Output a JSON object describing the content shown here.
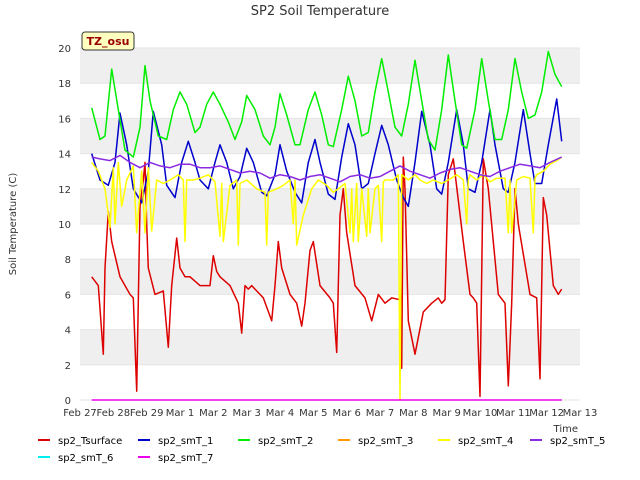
{
  "chart_data": {
    "type": "line",
    "title": "SP2 Soil Temperature",
    "xlabel": "Time",
    "ylabel": "Soil Temperature (C)",
    "site_tag": "TZ_osu",
    "ylim": [
      0,
      20
    ],
    "yticks": [
      0,
      2,
      4,
      6,
      8,
      10,
      12,
      14,
      16,
      18,
      20
    ],
    "xlim": [
      0,
      15
    ],
    "xticks": [
      {
        "label": "Feb 27",
        "pos": 0
      },
      {
        "label": "Feb 28",
        "pos": 1
      },
      {
        "label": "Feb 29",
        "pos": 2
      },
      {
        "label": "Mar 1",
        "pos": 3
      },
      {
        "label": "Mar 2",
        "pos": 4
      },
      {
        "label": "Mar 3",
        "pos": 5
      },
      {
        "label": "Mar 4",
        "pos": 6
      },
      {
        "label": "Mar 5",
        "pos": 7
      },
      {
        "label": "Mar 6",
        "pos": 8
      },
      {
        "label": "Mar 7",
        "pos": 9
      },
      {
        "label": "Mar 8",
        "pos": 10
      },
      {
        "label": "Mar 9",
        "pos": 11
      },
      {
        "label": "Mar 10",
        "pos": 12
      },
      {
        "label": "Mar 11",
        "pos": 13
      },
      {
        "label": "Mar 12",
        "pos": 14
      },
      {
        "label": "Mar 13",
        "pos": 15
      }
    ],
    "grid": "horizontal bands",
    "legend_position": "bottom",
    "series": [
      {
        "name": "sp2_Tsurface",
        "color": "#dd0000",
        "x": [
          0.35,
          0.55,
          0.7,
          0.75,
          0.85,
          0.95,
          1.2,
          1.5,
          1.6,
          1.7,
          1.8,
          1.9,
          1.95,
          2.0,
          2.05,
          2.25,
          2.5,
          2.65,
          2.75,
          2.9,
          3.0,
          3.15,
          3.3,
          3.6,
          3.9,
          4.0,
          4.1,
          4.2,
          4.5,
          4.75,
          4.85,
          4.95,
          5.05,
          5.15,
          5.5,
          5.75,
          5.85,
          5.95,
          6.05,
          6.3,
          6.5,
          6.65,
          6.75,
          6.9,
          7.0,
          7.2,
          7.5,
          7.6,
          7.7,
          7.8,
          7.9,
          8.0,
          8.25,
          8.55,
          8.75,
          8.95,
          9.15,
          9.35,
          9.6,
          9.65,
          9.7,
          9.75,
          9.85,
          10.05,
          10.3,
          10.55,
          10.75,
          10.85,
          10.95,
          11.05,
          11.2,
          11.5,
          11.7,
          11.8,
          11.9,
          12.0,
          12.1,
          12.25,
          12.55,
          12.75,
          12.85,
          12.95,
          13.05,
          13.15,
          13.5,
          13.7,
          13.8,
          13.9,
          14.0,
          14.2,
          14.35,
          14.45
        ],
        "y": [
          7.0,
          6.5,
          2.6,
          7.5,
          10.7,
          9.0,
          7.0,
          6.0,
          5.8,
          0.5,
          11.0,
          12.5,
          13.5,
          10.0,
          7.5,
          6.0,
          6.2,
          3.0,
          6.5,
          9.2,
          7.5,
          7.0,
          7.0,
          6.5,
          6.5,
          8.2,
          7.3,
          7.0,
          6.5,
          5.5,
          3.8,
          6.5,
          6.3,
          6.5,
          5.8,
          4.5,
          6.5,
          9.0,
          7.5,
          6.0,
          5.5,
          4.2,
          5.5,
          8.5,
          9.0,
          6.5,
          5.8,
          5.5,
          2.7,
          10.5,
          12.0,
          9.5,
          6.5,
          5.8,
          4.5,
          6.0,
          5.5,
          5.8,
          5.7,
          1.8,
          13.8,
          12.0,
          4.5,
          2.6,
          5.0,
          5.5,
          5.8,
          5.5,
          5.7,
          12.8,
          13.7,
          9.0,
          6.0,
          5.8,
          5.5,
          0.2,
          13.7,
          12.0,
          6.0,
          5.5,
          0.8,
          5.5,
          12.0,
          10.0,
          6.0,
          5.8,
          1.2,
          11.5,
          10.5,
          6.5,
          6.0,
          6.3
        ]
      },
      {
        "name": "sp2_smT_1",
        "color": "#0000cc",
        "x": [
          0.35,
          0.6,
          0.85,
          1.05,
          1.2,
          1.4,
          1.6,
          1.85,
          2.05,
          2.2,
          2.45,
          2.6,
          2.85,
          3.05,
          3.25,
          3.45,
          3.6,
          3.85,
          4.05,
          4.2,
          4.4,
          4.6,
          4.8,
          5.0,
          5.2,
          5.45,
          5.6,
          5.85,
          6.0,
          6.2,
          6.45,
          6.65,
          6.85,
          7.05,
          7.2,
          7.45,
          7.65,
          7.85,
          8.05,
          8.25,
          8.45,
          8.65,
          8.85,
          9.05,
          9.25,
          9.5,
          9.7,
          9.85,
          10.05,
          10.25,
          10.5,
          10.7,
          10.85,
          11.05,
          11.3,
          11.5,
          11.65,
          11.85,
          12.05,
          12.3,
          12.45,
          12.7,
          12.85,
          13.05,
          13.3,
          13.5,
          13.65,
          13.85,
          14.05,
          14.3,
          14.45
        ],
        "y": [
          14.0,
          12.5,
          12.2,
          13.5,
          16.3,
          14.5,
          12.0,
          11.2,
          13.0,
          16.4,
          14.5,
          12.2,
          11.5,
          13.5,
          14.7,
          13.5,
          12.5,
          12.0,
          13.5,
          14.5,
          13.5,
          12.0,
          12.7,
          14.3,
          13.5,
          11.8,
          11.6,
          12.8,
          14.5,
          13.0,
          11.8,
          11.2,
          13.5,
          14.8,
          13.5,
          11.7,
          11.4,
          13.8,
          15.7,
          14.5,
          12.0,
          12.3,
          14.0,
          15.6,
          14.5,
          12.5,
          11.5,
          11.0,
          13.5,
          16.4,
          14.5,
          12.0,
          11.7,
          13.5,
          16.5,
          14.5,
          12.0,
          11.8,
          13.5,
          16.5,
          14.5,
          12.0,
          11.8,
          13.5,
          16.5,
          14.0,
          12.3,
          12.3,
          14.5,
          17.1,
          14.7
        ]
      },
      {
        "name": "sp2_smT_2",
        "color": "#00ee00",
        "x": [
          0.35,
          0.6,
          0.75,
          0.95,
          1.15,
          1.35,
          1.6,
          1.8,
          1.95,
          2.1,
          2.35,
          2.6,
          2.8,
          3.0,
          3.2,
          3.45,
          3.6,
          3.8,
          4.0,
          4.2,
          4.45,
          4.65,
          4.85,
          5.0,
          5.25,
          5.5,
          5.7,
          5.85,
          6.0,
          6.2,
          6.45,
          6.6,
          6.85,
          7.05,
          7.25,
          7.45,
          7.6,
          7.85,
          8.05,
          8.25,
          8.45,
          8.65,
          8.85,
          9.05,
          9.25,
          9.45,
          9.65,
          9.85,
          10.05,
          10.25,
          10.45,
          10.65,
          10.85,
          11.05,
          11.25,
          11.45,
          11.6,
          11.85,
          12.05,
          12.25,
          12.45,
          12.65,
          12.85,
          13.05,
          13.25,
          13.45,
          13.65,
          13.85,
          14.05,
          14.25,
          14.45
        ],
        "y": [
          16.6,
          14.8,
          15.0,
          18.8,
          16.5,
          14.2,
          13.8,
          15.5,
          19.0,
          17.0,
          15.0,
          14.8,
          16.5,
          17.5,
          16.8,
          15.2,
          15.5,
          16.8,
          17.5,
          16.8,
          15.8,
          14.8,
          15.8,
          17.3,
          16.5,
          15.0,
          14.5,
          15.5,
          17.4,
          16.2,
          14.5,
          14.5,
          16.5,
          17.5,
          16.2,
          14.5,
          14.4,
          16.5,
          18.4,
          17.0,
          15.0,
          15.2,
          17.5,
          19.4,
          17.5,
          15.5,
          15.0,
          16.8,
          19.3,
          17.0,
          14.8,
          14.2,
          16.5,
          19.6,
          17.0,
          14.5,
          14.3,
          16.5,
          19.4,
          17.0,
          14.8,
          14.8,
          16.5,
          19.4,
          17.5,
          16.0,
          16.2,
          17.5,
          19.8,
          18.5,
          17.8
        ]
      },
      {
        "name": "sp2_smT_3",
        "color": "#ff9900",
        "x": [],
        "y": []
      },
      {
        "name": "sp2_smT_4",
        "color": "#ffff00",
        "x": [
          0.35,
          0.55,
          0.75,
          0.9,
          1.0,
          1.05,
          1.15,
          1.25,
          1.4,
          1.6,
          1.7,
          1.85,
          1.95,
          2.05,
          2.15,
          2.3,
          2.5,
          2.7,
          2.95,
          3.1,
          3.15,
          3.2,
          3.4,
          3.6,
          3.85,
          4.05,
          4.2,
          4.25,
          4.3,
          4.5,
          4.7,
          4.75,
          4.8,
          5.0,
          5.3,
          5.55,
          5.6,
          5.65,
          5.9,
          6.1,
          6.3,
          6.4,
          6.45,
          6.5,
          6.7,
          6.95,
          7.15,
          7.4,
          7.6,
          7.75,
          7.95,
          8.1,
          8.15,
          8.2,
          8.3,
          8.35,
          8.45,
          8.6,
          8.65,
          8.7,
          8.85,
          8.95,
          9.05,
          9.1,
          9.15,
          9.4,
          9.55,
          9.6,
          9.65,
          9.85,
          10.05,
          10.2,
          10.4,
          10.6,
          10.85,
          11.05,
          11.3,
          11.5,
          11.6,
          11.65,
          11.7,
          11.9,
          12.1,
          12.3,
          12.5,
          12.75,
          12.85,
          12.9,
          12.95,
          13.1,
          13.3,
          13.5,
          13.6,
          13.65,
          13.7,
          13.9,
          14.1,
          14.3,
          14.45
        ],
        "y": [
          13.5,
          13.0,
          12.0,
          9.8,
          13.2,
          10.0,
          13.5,
          11.0,
          12.5,
          13.3,
          9.5,
          13.0,
          9.5,
          13.2,
          9.6,
          12.5,
          12.3,
          12.5,
          12.8,
          12.5,
          9.0,
          12.5,
          12.5,
          12.6,
          12.8,
          12.4,
          9.3,
          12.3,
          9.0,
          12.2,
          12.5,
          8.8,
          12.3,
          12.5,
          12.0,
          11.8,
          8.8,
          11.8,
          12.0,
          12.2,
          12.5,
          10.0,
          12.5,
          8.8,
          10.5,
          12.0,
          12.5,
          12.2,
          11.8,
          12.0,
          12.3,
          9.5,
          12.0,
          9.0,
          12.3,
          9.0,
          12.0,
          9.3,
          12.0,
          9.5,
          12.0,
          12.2,
          9.0,
          12.4,
          12.5,
          12.5,
          12.8,
          0.0,
          12.8,
          12.5,
          12.8,
          12.5,
          12.3,
          12.5,
          12.3,
          12.5,
          12.8,
          12.5,
          10.0,
          12.5,
          12.8,
          12.5,
          12.8,
          12.4,
          12.6,
          12.6,
          9.5,
          12.5,
          9.5,
          12.5,
          12.7,
          12.6,
          9.5,
          12.6,
          12.8,
          13.0,
          13.4,
          13.6,
          13.8
        ]
      },
      {
        "name": "sp2_smT_5",
        "color": "#8a2be2",
        "x": [
          0.35,
          0.6,
          0.9,
          1.2,
          1.5,
          1.8,
          2.1,
          2.4,
          2.7,
          3.0,
          3.3,
          3.6,
          3.9,
          4.2,
          4.5,
          4.8,
          5.1,
          5.4,
          5.7,
          6.0,
          6.3,
          6.6,
          6.9,
          7.2,
          7.5,
          7.8,
          8.1,
          8.4,
          8.7,
          9.0,
          9.3,
          9.6,
          9.9,
          10.2,
          10.5,
          10.8,
          11.1,
          11.4,
          11.7,
          12.0,
          12.3,
          12.6,
          12.9,
          13.2,
          13.5,
          13.8,
          14.1,
          14.45
        ],
        "y": [
          13.8,
          13.7,
          13.6,
          13.9,
          13.5,
          13.2,
          13.5,
          13.3,
          13.2,
          13.4,
          13.4,
          13.2,
          13.2,
          13.3,
          13.1,
          12.9,
          13.0,
          12.9,
          12.6,
          12.8,
          12.7,
          12.5,
          12.7,
          12.8,
          12.6,
          12.4,
          12.7,
          12.8,
          12.6,
          12.7,
          13.0,
          13.3,
          13.0,
          12.8,
          12.6,
          12.9,
          13.1,
          13.2,
          13.0,
          12.8,
          12.7,
          13.0,
          13.2,
          13.4,
          13.3,
          13.2,
          13.5,
          13.8
        ]
      },
      {
        "name": "sp2_smT_6",
        "color": "#00eeee",
        "x": [],
        "y": []
      },
      {
        "name": "sp2_smT_7",
        "color": "#ee00ee",
        "x": [
          0.35,
          14.45
        ],
        "y": [
          0.0,
          0.0
        ]
      }
    ]
  }
}
